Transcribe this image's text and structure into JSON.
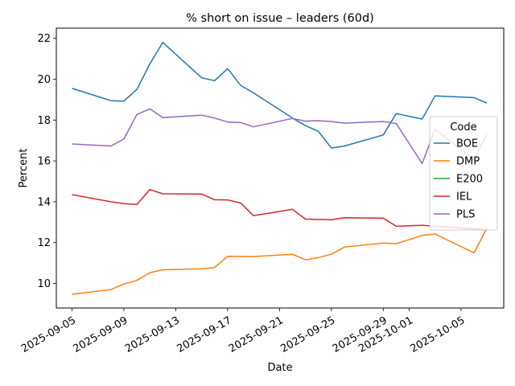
{
  "chart_data": {
    "type": "line",
    "title": "% short on issue – leaders (60d)",
    "xlabel": "Date",
    "ylabel": "Percent",
    "x_ticks": [
      "2025-09-05",
      "2025-09-09",
      "2025-09-13",
      "2025-09-17",
      "2025-09-21",
      "2025-09-25",
      "2025-09-29",
      "2025-10-01",
      "2025-10-05"
    ],
    "y_ticks": [
      10,
      12,
      14,
      16,
      18,
      20,
      22
    ],
    "xlim": [
      "2025-09-03T19:00",
      "2025-10-08T07:00"
    ],
    "ylim": [
      8.8,
      22.5
    ],
    "grid": false,
    "legend_title": "Code",
    "legend_position": "center-right",
    "series": [
      {
        "name": "BOE",
        "color": "#1f77b4",
        "points": [
          [
            "2025-09-05",
            19.55
          ],
          [
            "2025-09-08",
            18.95
          ],
          [
            "2025-09-09",
            18.93
          ],
          [
            "2025-09-10",
            19.5
          ],
          [
            "2025-09-11",
            20.75
          ],
          [
            "2025-09-12",
            21.8
          ],
          [
            "2025-09-15",
            20.07
          ],
          [
            "2025-09-16",
            19.93
          ],
          [
            "2025-09-17",
            20.52
          ],
          [
            "2025-09-18",
            19.7
          ],
          [
            "2025-09-19",
            19.33
          ],
          [
            "2025-09-22",
            18.1
          ],
          [
            "2025-09-23",
            17.73
          ],
          [
            "2025-09-24",
            17.45
          ],
          [
            "2025-09-25",
            16.63
          ],
          [
            "2025-09-26",
            16.73
          ],
          [
            "2025-09-29",
            17.27
          ],
          [
            "2025-09-30",
            18.32
          ],
          [
            "2025-10-02",
            18.05
          ],
          [
            "2025-10-03",
            19.18
          ],
          [
            "2025-10-06",
            19.1
          ],
          [
            "2025-10-07",
            18.83
          ]
        ]
      },
      {
        "name": "DMP",
        "color": "#ff7f0e",
        "points": [
          [
            "2025-09-05",
            9.47
          ],
          [
            "2025-09-08",
            9.7
          ],
          [
            "2025-09-09",
            9.97
          ],
          [
            "2025-09-10",
            10.15
          ],
          [
            "2025-09-11",
            10.53
          ],
          [
            "2025-09-12",
            10.67
          ],
          [
            "2025-09-15",
            10.72
          ],
          [
            "2025-09-16",
            10.78
          ],
          [
            "2025-09-17",
            11.33
          ],
          [
            "2025-09-19",
            11.32
          ],
          [
            "2025-09-22",
            11.43
          ],
          [
            "2025-09-23",
            11.16
          ],
          [
            "2025-09-24",
            11.27
          ],
          [
            "2025-09-25",
            11.43
          ],
          [
            "2025-09-26",
            11.78
          ],
          [
            "2025-09-29",
            11.98
          ],
          [
            "2025-09-30",
            11.95
          ],
          [
            "2025-10-02",
            12.35
          ],
          [
            "2025-10-03",
            12.42
          ],
          [
            "2025-10-06",
            11.5
          ],
          [
            "2025-10-07",
            12.72
          ]
        ]
      },
      {
        "name": "E200",
        "color": "#2ca02c",
        "points": []
      },
      {
        "name": "IEL",
        "color": "#d62728",
        "points": [
          [
            "2025-09-05",
            14.35
          ],
          [
            "2025-09-08",
            14.0
          ],
          [
            "2025-09-09",
            13.91
          ],
          [
            "2025-09-10",
            13.87
          ],
          [
            "2025-09-11",
            14.6
          ],
          [
            "2025-09-12",
            14.39
          ],
          [
            "2025-09-15",
            14.38
          ],
          [
            "2025-09-16",
            14.1
          ],
          [
            "2025-09-17",
            14.09
          ],
          [
            "2025-09-18",
            13.94
          ],
          [
            "2025-09-19",
            13.32
          ],
          [
            "2025-09-22",
            13.63
          ],
          [
            "2025-09-23",
            13.15
          ],
          [
            "2025-09-25",
            13.12
          ],
          [
            "2025-09-26",
            13.22
          ],
          [
            "2025-09-29",
            13.2
          ],
          [
            "2025-09-30",
            12.8
          ],
          [
            "2025-10-02",
            12.85
          ],
          [
            "2025-10-03",
            12.8
          ],
          [
            "2025-10-07",
            12.63
          ]
        ]
      },
      {
        "name": "PLS",
        "color": "#9467bd",
        "points": [
          [
            "2025-09-05",
            16.83
          ],
          [
            "2025-09-08",
            16.73
          ],
          [
            "2025-09-09",
            17.07
          ],
          [
            "2025-09-10",
            18.27
          ],
          [
            "2025-09-11",
            18.55
          ],
          [
            "2025-09-12",
            18.12
          ],
          [
            "2025-09-15",
            18.24
          ],
          [
            "2025-09-16",
            18.1
          ],
          [
            "2025-09-17",
            17.9
          ],
          [
            "2025-09-18",
            17.88
          ],
          [
            "2025-09-19",
            17.67
          ],
          [
            "2025-09-22",
            18.08
          ],
          [
            "2025-09-23",
            17.95
          ],
          [
            "2025-09-24",
            17.97
          ],
          [
            "2025-09-25",
            17.93
          ],
          [
            "2025-09-26",
            17.85
          ],
          [
            "2025-09-29",
            17.93
          ],
          [
            "2025-09-30",
            17.83
          ],
          [
            "2025-10-02",
            15.87
          ],
          [
            "2025-10-03",
            17.55
          ],
          [
            "2025-10-06",
            16.05
          ],
          [
            "2025-10-07",
            17.35
          ]
        ]
      }
    ]
  }
}
